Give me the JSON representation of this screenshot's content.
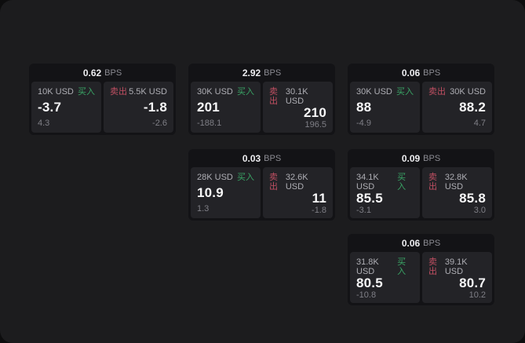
{
  "labels": {
    "unit": "BPS",
    "buy": "买入",
    "sell": "卖出"
  },
  "colors": {
    "page_bg": "#1c1c1e",
    "card_bg": "#131316",
    "tile_bg": "#232327",
    "accent_buy": "#39a465",
    "accent_sell": "#c04f62"
  },
  "cards": [
    {
      "bps": "0.62",
      "row": 1,
      "col": 1,
      "buy": {
        "size": "10K USD",
        "value": "-3.7",
        "sub": "4.3"
      },
      "sell": {
        "size": "5.5K USD",
        "value": "-1.8",
        "sub": "-2.6"
      }
    },
    {
      "bps": "2.92",
      "row": 1,
      "col": 2,
      "buy": {
        "size": "30K USD",
        "value": "201",
        "sub": "-188.1"
      },
      "sell": {
        "size": "30.1K USD",
        "value": "210",
        "sub": "196.5"
      }
    },
    {
      "bps": "0.06",
      "row": 1,
      "col": 3,
      "buy": {
        "size": "30K USD",
        "value": "88",
        "sub": "-4.9"
      },
      "sell": {
        "size": "30K USD",
        "value": "88.2",
        "sub": "4.7"
      }
    },
    {
      "bps": "0.03",
      "row": 2,
      "col": 2,
      "buy": {
        "size": "28K USD",
        "value": "10.9",
        "sub": "1.3"
      },
      "sell": {
        "size": "32.6K USD",
        "value": "11",
        "sub": "-1.8"
      }
    },
    {
      "bps": "0.09",
      "row": 2,
      "col": 3,
      "buy": {
        "size": "34.1K USD",
        "value": "85.5",
        "sub": "-3.1"
      },
      "sell": {
        "size": "32.8K USD",
        "value": "85.8",
        "sub": "3.0"
      }
    },
    {
      "bps": "0.06",
      "row": 3,
      "col": 3,
      "buy": {
        "size": "31.8K USD",
        "value": "80.5",
        "sub": "-10.8"
      },
      "sell": {
        "size": "39.1K USD",
        "value": "80.7",
        "sub": "10.2"
      }
    }
  ]
}
